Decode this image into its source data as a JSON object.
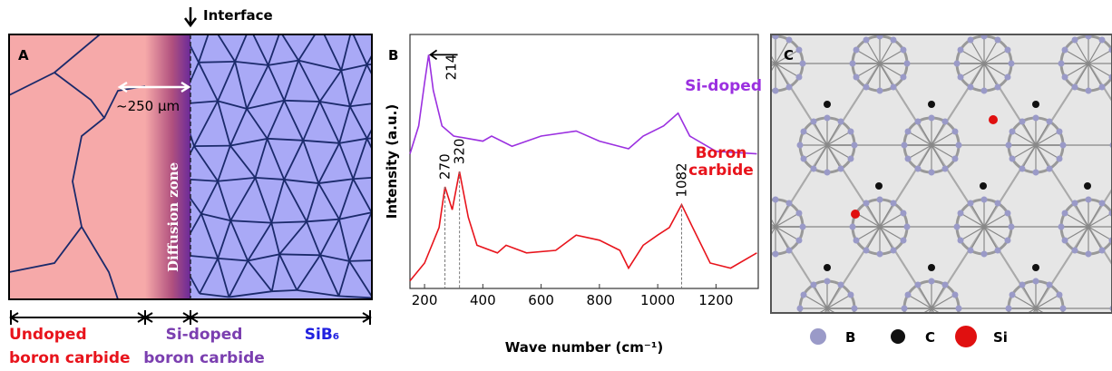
{
  "panel_a": {
    "label": "A",
    "interface": "Interface",
    "distance": "~250 μm",
    "zone": "Diffusion zone",
    "regions": [
      {
        "lines": [
          "Undoped",
          "boron carbide"
        ]
      },
      {
        "lines": [
          "Si-doped",
          "boron carbide"
        ]
      },
      {
        "lines": [
          "SiB₆"
        ]
      }
    ]
  },
  "chart_data": {
    "type": "line",
    "panel_label": "B",
    "x_label": "Wave number (cm⁻¹)",
    "y_label": "Intensity (a.u.)",
    "xlim": [
      150,
      1345
    ],
    "xticks": [
      200,
      400,
      600,
      800,
      1000,
      1200
    ],
    "ylim": [
      0,
      100
    ],
    "series": [
      {
        "name": "Si-doped",
        "color": "#9b30e0",
        "x": [
          150,
          180,
          200,
          214,
          230,
          260,
          300,
          400,
          430,
          500,
          600,
          720,
          800,
          900,
          950,
          1020,
          1070,
          1110,
          1200,
          1340
        ],
        "values": [
          53,
          64,
          81,
          92,
          78,
          64,
          60,
          58,
          60,
          56,
          60,
          62,
          58,
          55,
          60,
          64,
          69,
          60,
          54,
          53
        ]
      },
      {
        "name": "Boron carbide",
        "color": "#e8141c",
        "x": [
          150,
          200,
          250,
          270,
          295,
          320,
          350,
          380,
          450,
          480,
          550,
          650,
          720,
          800,
          870,
          900,
          950,
          1000,
          1040,
          1082,
          1120,
          1180,
          1250,
          1340
        ],
        "values": [
          3,
          10,
          24,
          40,
          31,
          46,
          28,
          17,
          14,
          17,
          14,
          15,
          21,
          19,
          15,
          8,
          17,
          21,
          24,
          33,
          24,
          10,
          8,
          14
        ]
      }
    ],
    "annotations": [
      {
        "label": "214",
        "x": 214
      },
      {
        "label": "270",
        "x": 270
      },
      {
        "label": "320",
        "x": 320
      },
      {
        "label": "1082",
        "x": 1082
      }
    ]
  },
  "panel_c": {
    "label": "C",
    "legend": [
      "B",
      "C",
      "Si"
    ]
  }
}
